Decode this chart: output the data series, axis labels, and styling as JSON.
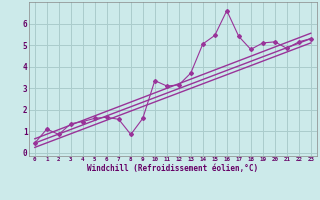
{
  "xlabel": "Windchill (Refroidissement éolien,°C)",
  "bg_color": "#cceaea",
  "grid_color": "#aacccc",
  "line_color": "#993399",
  "xlim": [
    -0.5,
    23.5
  ],
  "ylim": [
    -0.15,
    7.0
  ],
  "xticks": [
    0,
    1,
    2,
    3,
    4,
    5,
    6,
    7,
    8,
    9,
    10,
    11,
    12,
    13,
    14,
    15,
    16,
    17,
    18,
    19,
    20,
    21,
    22,
    23
  ],
  "yticks": [
    0,
    1,
    2,
    3,
    4,
    5,
    6
  ],
  "scatter_x": [
    0,
    1,
    2,
    3,
    4,
    5,
    6,
    7,
    8,
    9,
    10,
    11,
    12,
    13,
    14,
    15,
    16,
    17,
    18,
    19,
    20,
    21,
    22,
    23
  ],
  "scatter_y": [
    0.45,
    1.1,
    0.85,
    1.35,
    1.45,
    1.6,
    1.65,
    1.55,
    0.85,
    1.6,
    3.35,
    3.1,
    3.15,
    3.7,
    5.05,
    5.45,
    6.6,
    5.4,
    4.8,
    5.1,
    5.15,
    4.85,
    5.15,
    5.3
  ],
  "line1_x": [
    0,
    23
  ],
  "line1_y": [
    0.25,
    5.1
  ],
  "line2_x": [
    0,
    23
  ],
  "line2_y": [
    0.45,
    5.3
  ],
  "line3_x": [
    0,
    23
  ],
  "line3_y": [
    0.65,
    5.55
  ]
}
